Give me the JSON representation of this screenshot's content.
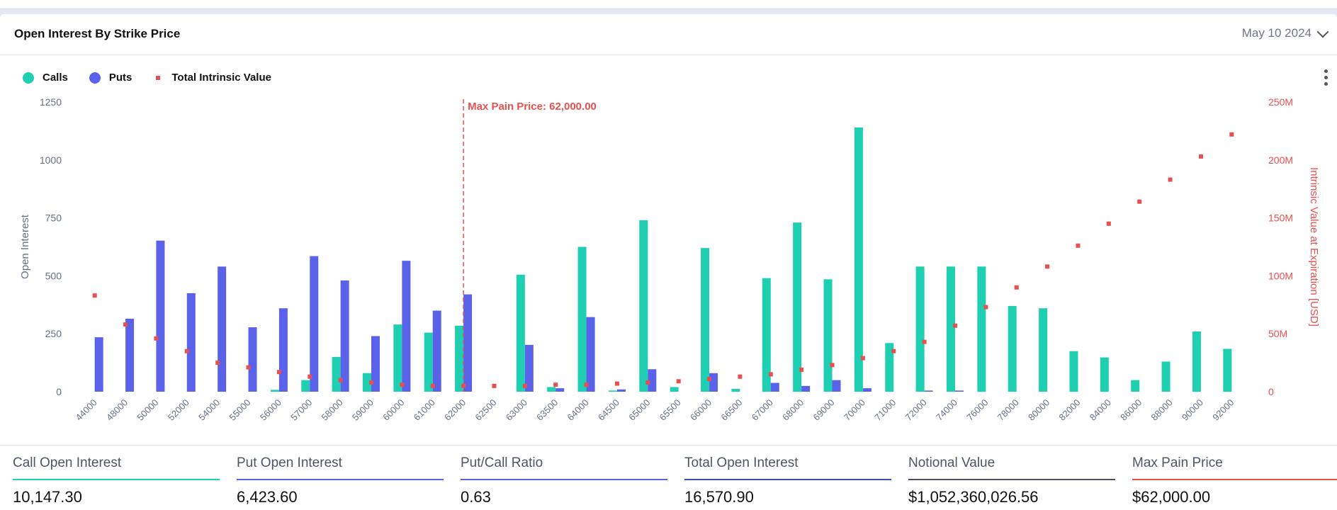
{
  "card": {
    "title": "Open Interest By Strike Price",
    "date": "May 10 2024"
  },
  "legend": {
    "calls": "Calls",
    "puts": "Puts",
    "intrinsic": "Total Intrinsic Value"
  },
  "colors": {
    "calls": "#1fcfb1",
    "puts": "#5b62ea",
    "intrinsic": "#e8504f",
    "max_pain": "#e8504f"
  },
  "chart_data": {
    "type": "bar",
    "title": "",
    "ylabel": "Open Interest",
    "y2label": "Intrinsic Value at Expiration [USD]",
    "ylim": [
      0,
      1250
    ],
    "y2lim": [
      0,
      250000000
    ],
    "yticks": [
      "0",
      "250",
      "500",
      "750",
      "1000",
      "1250"
    ],
    "y2ticks": [
      "0",
      "50M",
      "100M",
      "150M",
      "200M",
      "250M"
    ],
    "max_pain_label": "Max Pain Price: 62,000.00",
    "max_pain_category": "62000",
    "categories": [
      "44000",
      "48000",
      "50000",
      "52000",
      "54000",
      "55000",
      "56000",
      "57000",
      "58000",
      "59000",
      "60000",
      "61000",
      "62000",
      "62500",
      "63000",
      "63500",
      "64000",
      "64500",
      "65000",
      "65500",
      "66000",
      "66500",
      "67000",
      "68000",
      "69000",
      "70000",
      "71000",
      "72000",
      "74000",
      "76000",
      "78000",
      "80000",
      "82000",
      "84000",
      "86000",
      "88000",
      "90000",
      "92000"
    ],
    "series": [
      {
        "name": "Calls",
        "kind": "bar",
        "axis": "left",
        "values": [
          0,
          0,
          0,
          0,
          0,
          0,
          8,
          50,
          150,
          80,
          290,
          255,
          285,
          0,
          505,
          20,
          625,
          5,
          740,
          20,
          620,
          12,
          490,
          730,
          485,
          1140,
          210,
          540,
          540,
          540,
          370,
          360,
          175,
          148,
          50,
          130,
          260,
          185
        ]
      },
      {
        "name": "Puts",
        "kind": "bar",
        "axis": "left",
        "values": [
          235,
          315,
          652,
          425,
          540,
          278,
          360,
          585,
          480,
          240,
          565,
          350,
          420,
          0,
          202,
          15,
          322,
          10,
          97,
          0,
          80,
          0,
          38,
          25,
          50,
          15,
          0,
          5,
          5,
          0,
          0,
          0,
          0,
          0,
          0,
          0,
          0,
          0
        ]
      },
      {
        "name": "Total Intrinsic Value",
        "kind": "point",
        "axis": "right",
        "values": [
          83000000,
          58000000,
          46000000,
          35000000,
          25000000,
          21000000,
          17000000,
          13000000,
          10000000,
          8000000,
          6000000,
          5000000,
          5000000,
          5000000,
          5000000,
          6000000,
          6000000,
          7000000,
          8000000,
          9000000,
          11000000,
          13000000,
          15000000,
          19000000,
          23000000,
          29000000,
          35000000,
          43000000,
          57000000,
          73000000,
          90000000,
          108000000,
          126000000,
          145000000,
          164000000,
          183000000,
          203000000,
          222000000
        ]
      }
    ]
  },
  "stats": [
    {
      "label": "Call Open Interest",
      "value": "10,147.30",
      "color": "#1fcfb1"
    },
    {
      "label": "Put Open Interest",
      "value": "6,423.60",
      "color": "#5b62ea"
    },
    {
      "label": "Put/Call Ratio",
      "value": "0.63",
      "color": "#5b62ea"
    },
    {
      "label": "Total Open Interest",
      "value": "16,570.90",
      "color": "#3a4fb5"
    },
    {
      "label": "Notional Value",
      "value": "$1,052,360,026.56",
      "color": "#4a5060"
    },
    {
      "label": "Max Pain Price",
      "value": "$62,000.00",
      "color": "#e8504f"
    }
  ]
}
